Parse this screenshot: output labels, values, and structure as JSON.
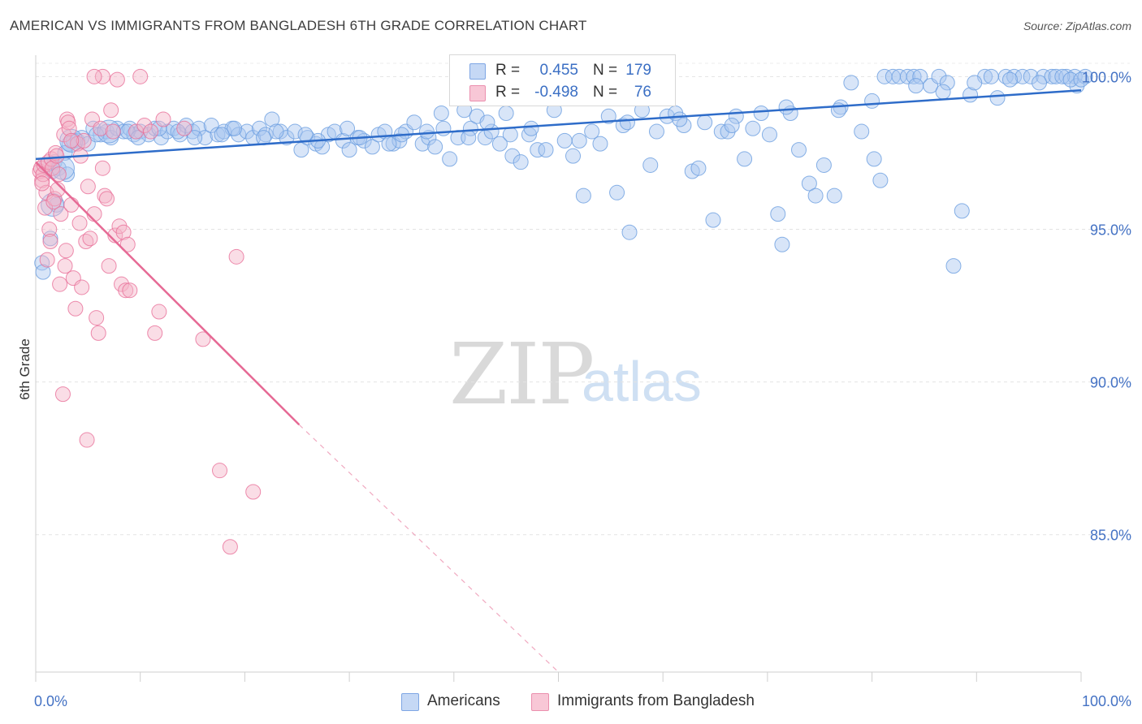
{
  "title": "AMERICAN VS IMMIGRANTS FROM BANGLADESH 6TH GRADE CORRELATION CHART",
  "source": "Source: ZipAtlas.com",
  "watermark": {
    "zip": "ZIP",
    "atlas": "atlas"
  },
  "stats": [
    {
      "r_label": "R =",
      "r_value": "0.455",
      "n_label": "N =",
      "n_value": "179",
      "color": "#a9c6f0"
    },
    {
      "r_label": "R =",
      "r_value": "-0.498",
      "n_label": "N =",
      "n_value": "76",
      "color": "#f5b3c8"
    }
  ],
  "legend": [
    {
      "label": "Americans",
      "color": "#a9c6f0"
    },
    {
      "label": "Immigrants from Bangladesh",
      "color": "#f5b3c8"
    }
  ],
  "chart_data": {
    "type": "scatter",
    "title": "AMERICAN VS IMMIGRANTS FROM BANGLADESH 6TH GRADE CORRELATION CHART",
    "xlabel": "",
    "ylabel": "6th Grade",
    "xlim": [
      0,
      100
    ],
    "ylim": [
      80.5,
      100.7
    ],
    "x_tick_labels": [
      {
        "value": 0,
        "label": "0.0%"
      },
      {
        "value": 100,
        "label": "100.0%"
      }
    ],
    "y_tick_labels": [
      {
        "value": 100,
        "label": "100.0%"
      },
      {
        "value": 95,
        "label": "95.0%"
      },
      {
        "value": 90,
        "label": "90.0%"
      },
      {
        "value": 85,
        "label": "85.0%"
      }
    ],
    "x_minor_ticks": [
      0,
      10,
      20,
      30,
      40,
      50,
      60,
      70,
      80,
      90,
      100
    ],
    "grid": "horizontal-dashed",
    "legend_position": "bottom-center",
    "series": [
      {
        "name": "Americans",
        "color": "#6a9ee0",
        "fill": "#a9c6f0",
        "trend": {
          "x": [
            0,
            100
          ],
          "y": [
            97.3,
            99.55
          ]
        },
        "points": [
          [
            0.6,
            93.9
          ],
          [
            0.7,
            93.6
          ],
          [
            1.4,
            94.7
          ],
          [
            1.6,
            96.9
          ],
          [
            1.8,
            97.2
          ],
          [
            2.0,
            95.8
          ],
          [
            2.2,
            97.0
          ],
          [
            3.0,
            96.8
          ],
          [
            3.2,
            97.8
          ],
          [
            4.0,
            97.9
          ],
          [
            4.4,
            98.0
          ],
          [
            5.0,
            97.8
          ],
          [
            5.5,
            98.3
          ],
          [
            6.2,
            98.1
          ],
          [
            6.8,
            98.2
          ],
          [
            7.2,
            98.0
          ],
          [
            7.8,
            98.3
          ],
          [
            8.4,
            98.2
          ],
          [
            9.0,
            98.3
          ],
          [
            9.4,
            98.1
          ],
          [
            10.0,
            98.2
          ],
          [
            10.8,
            98.1
          ],
          [
            11.4,
            98.3
          ],
          [
            12.0,
            98.0
          ],
          [
            12.6,
            98.2
          ],
          [
            13.2,
            98.3
          ],
          [
            13.8,
            98.1
          ],
          [
            14.4,
            98.4
          ],
          [
            15.0,
            98.2
          ],
          [
            15.6,
            98.3
          ],
          [
            16.2,
            98.0
          ],
          [
            16.8,
            98.4
          ],
          [
            17.4,
            98.1
          ],
          [
            18.0,
            98.2
          ],
          [
            18.8,
            98.3
          ],
          [
            19.4,
            98.1
          ],
          [
            20.2,
            98.2
          ],
          [
            20.8,
            98.0
          ],
          [
            21.4,
            98.3
          ],
          [
            22.0,
            98.1
          ],
          [
            22.6,
            98.6
          ],
          [
            23.4,
            98.2
          ],
          [
            24.0,
            98.0
          ],
          [
            24.8,
            98.2
          ],
          [
            25.4,
            97.6
          ],
          [
            26.0,
            98.0
          ],
          [
            26.8,
            97.8
          ],
          [
            27.4,
            97.7
          ],
          [
            28.0,
            98.1
          ],
          [
            28.6,
            98.2
          ],
          [
            29.4,
            97.9
          ],
          [
            30.0,
            97.6
          ],
          [
            30.8,
            98.0
          ],
          [
            31.4,
            97.9
          ],
          [
            32.2,
            97.7
          ],
          [
            32.8,
            98.1
          ],
          [
            33.4,
            98.2
          ],
          [
            34.2,
            97.8
          ],
          [
            34.8,
            97.9
          ],
          [
            35.4,
            98.2
          ],
          [
            36.2,
            98.5
          ],
          [
            37.0,
            97.8
          ],
          [
            37.6,
            98.0
          ],
          [
            38.2,
            97.7
          ],
          [
            38.8,
            98.8
          ],
          [
            39.6,
            97.3
          ],
          [
            40.4,
            98.0
          ],
          [
            41.0,
            98.9
          ],
          [
            41.6,
            98.3
          ],
          [
            42.2,
            98.7
          ],
          [
            43.0,
            98.0
          ],
          [
            43.6,
            98.2
          ],
          [
            44.4,
            97.8
          ],
          [
            45.0,
            98.8
          ],
          [
            45.6,
            97.4
          ],
          [
            46.4,
            97.2
          ],
          [
            47.2,
            98.1
          ],
          [
            48.0,
            97.6
          ],
          [
            48.8,
            97.6
          ],
          [
            49.6,
            98.9
          ],
          [
            50.6,
            97.9
          ],
          [
            51.4,
            97.4
          ],
          [
            52.4,
            96.1
          ],
          [
            53.2,
            98.2
          ],
          [
            54.0,
            97.8
          ],
          [
            54.8,
            98.7
          ],
          [
            55.6,
            96.2
          ],
          [
            56.2,
            98.4
          ],
          [
            56.8,
            94.9
          ],
          [
            58.0,
            98.9
          ],
          [
            58.8,
            97.1
          ],
          [
            59.4,
            98.2
          ],
          [
            60.4,
            98.7
          ],
          [
            61.2,
            98.8
          ],
          [
            62.0,
            98.4
          ],
          [
            62.8,
            96.9
          ],
          [
            63.4,
            97.0
          ],
          [
            64.0,
            98.5
          ],
          [
            64.8,
            95.3
          ],
          [
            65.6,
            98.2
          ],
          [
            66.2,
            98.2
          ],
          [
            67.0,
            98.7
          ],
          [
            67.8,
            97.3
          ],
          [
            68.6,
            98.3
          ],
          [
            69.4,
            98.8
          ],
          [
            70.2,
            98.1
          ],
          [
            71.0,
            95.5
          ],
          [
            71.4,
            94.5
          ],
          [
            72.2,
            98.8
          ],
          [
            73.0,
            97.6
          ],
          [
            74.0,
            96.5
          ],
          [
            74.6,
            96.1
          ],
          [
            75.4,
            97.1
          ],
          [
            76.4,
            96.1
          ],
          [
            77.0,
            99.0
          ],
          [
            78.0,
            99.8
          ],
          [
            79.0,
            98.2
          ],
          [
            80.2,
            97.3
          ],
          [
            80.8,
            96.6
          ],
          [
            81.2,
            100.0
          ],
          [
            82.0,
            100.0
          ],
          [
            82.6,
            100.0
          ],
          [
            83.4,
            100.0
          ],
          [
            84.0,
            100.0
          ],
          [
            84.6,
            100.0
          ],
          [
            85.6,
            99.7
          ],
          [
            86.4,
            100.0
          ],
          [
            87.2,
            99.8
          ],
          [
            87.8,
            93.8
          ],
          [
            88.6,
            95.6
          ],
          [
            89.4,
            99.4
          ],
          [
            90.8,
            100.0
          ],
          [
            91.4,
            100.0
          ],
          [
            92.0,
            99.3
          ],
          [
            92.8,
            100.0
          ],
          [
            93.6,
            100.0
          ],
          [
            94.4,
            100.0
          ],
          [
            95.2,
            100.0
          ],
          [
            96.4,
            100.0
          ],
          [
            97.2,
            100.0
          ],
          [
            97.6,
            100.0
          ],
          [
            98.6,
            100.0
          ],
          [
            99.4,
            100.0
          ],
          [
            99.6,
            99.7
          ],
          [
            100.4,
            100.0
          ],
          [
            1.0,
            97.1
          ],
          [
            2.8,
            97.5
          ],
          [
            5.8,
            98.1
          ],
          [
            8.8,
            98.2
          ],
          [
            11.8,
            98.3
          ],
          [
            15.2,
            98.0
          ],
          [
            19.0,
            98.3
          ],
          [
            23.0,
            98.2
          ],
          [
            27.0,
            97.9
          ],
          [
            31.0,
            98.0
          ],
          [
            35.0,
            98.1
          ],
          [
            39.0,
            98.3
          ],
          [
            43.2,
            98.5
          ],
          [
            47.4,
            98.3
          ],
          [
            52.0,
            97.9
          ],
          [
            56.6,
            98.5
          ],
          [
            61.6,
            98.6
          ],
          [
            66.6,
            98.4
          ],
          [
            71.8,
            99.0
          ],
          [
            76.8,
            98.9
          ],
          [
            80.0,
            99.2
          ],
          [
            84.2,
            99.7
          ],
          [
            86.8,
            99.5
          ],
          [
            89.8,
            99.8
          ],
          [
            93.2,
            99.9
          ],
          [
            96.0,
            99.8
          ],
          [
            98.2,
            100.0
          ],
          [
            99.0,
            99.9
          ],
          [
            100.0,
            99.9
          ],
          [
            3.6,
            97.9
          ],
          [
            9.8,
            98.0
          ],
          [
            13.6,
            98.2
          ],
          [
            17.8,
            98.1
          ],
          [
            21.8,
            98.0
          ],
          [
            25.8,
            98.1
          ],
          [
            29.8,
            98.3
          ],
          [
            33.8,
            97.8
          ],
          [
            37.4,
            98.2
          ],
          [
            41.4,
            98.0
          ],
          [
            45.4,
            98.1
          ]
        ],
        "large_points": [
          [
            2.6,
            97.0
          ],
          [
            1.6,
            95.8
          ],
          [
            3.4,
            97.9
          ],
          [
            7.0,
            98.2
          ]
        ]
      },
      {
        "name": "Immigrants from Bangladesh",
        "color": "#e86f98",
        "fill": "#f5b3c8",
        "trend": {
          "x": [
            0,
            25.2
          ],
          "y": [
            97.2,
            88.6
          ]
        },
        "trend_extension": {
          "x": [
            25.2,
            50
          ],
          "y": [
            88.6,
            80.5
          ]
        },
        "points": [
          [
            0.4,
            96.9
          ],
          [
            0.5,
            97.0
          ],
          [
            0.6,
            96.6
          ],
          [
            0.7,
            96.8
          ],
          [
            0.8,
            97.1
          ],
          [
            0.9,
            95.7
          ],
          [
            1.0,
            96.2
          ],
          [
            1.2,
            97.2
          ],
          [
            1.3,
            95.0
          ],
          [
            1.4,
            94.6
          ],
          [
            1.5,
            97.3
          ],
          [
            1.6,
            97.0
          ],
          [
            1.8,
            96.0
          ],
          [
            1.9,
            97.5
          ],
          [
            2.0,
            97.4
          ],
          [
            2.2,
            96.8
          ],
          [
            2.3,
            93.2
          ],
          [
            2.4,
            95.5
          ],
          [
            2.6,
            89.6
          ],
          [
            2.7,
            98.1
          ],
          [
            2.8,
            93.8
          ],
          [
            2.9,
            94.3
          ],
          [
            3.0,
            98.6
          ],
          [
            3.1,
            98.5
          ],
          [
            3.2,
            98.3
          ],
          [
            3.4,
            95.8
          ],
          [
            3.6,
            93.4
          ],
          [
            3.8,
            92.4
          ],
          [
            4.0,
            97.8
          ],
          [
            4.2,
            95.2
          ],
          [
            4.4,
            93.1
          ],
          [
            4.6,
            97.9
          ],
          [
            4.8,
            94.6
          ],
          [
            4.9,
            88.1
          ],
          [
            5.0,
            96.4
          ],
          [
            5.2,
            94.7
          ],
          [
            5.4,
            98.6
          ],
          [
            5.6,
            95.5
          ],
          [
            5.8,
            92.1
          ],
          [
            6.0,
            91.6
          ],
          [
            6.2,
            98.3
          ],
          [
            6.4,
            100.0
          ],
          [
            6.6,
            96.1
          ],
          [
            6.8,
            96.0
          ],
          [
            7.0,
            93.8
          ],
          [
            7.2,
            98.9
          ],
          [
            7.4,
            98.2
          ],
          [
            7.6,
            94.8
          ],
          [
            7.8,
            99.9
          ],
          [
            8.0,
            95.1
          ],
          [
            8.2,
            93.2
          ],
          [
            8.4,
            94.9
          ],
          [
            8.6,
            93.0
          ],
          [
            8.8,
            94.5
          ],
          [
            9.0,
            93.0
          ],
          [
            9.6,
            98.2
          ],
          [
            10.0,
            100.0
          ],
          [
            10.4,
            98.4
          ],
          [
            11.0,
            98.2
          ],
          [
            11.4,
            91.6
          ],
          [
            11.8,
            92.3
          ],
          [
            12.2,
            98.6
          ],
          [
            14.2,
            98.3
          ],
          [
            16.0,
            91.4
          ],
          [
            17.6,
            87.1
          ],
          [
            18.6,
            84.6
          ],
          [
            19.2,
            94.1
          ],
          [
            20.8,
            86.4
          ],
          [
            5.6,
            100.0
          ],
          [
            3.4,
            97.9
          ],
          [
            0.6,
            96.5
          ],
          [
            1.1,
            94.0
          ],
          [
            2.1,
            96.3
          ],
          [
            4.3,
            97.4
          ],
          [
            6.4,
            97.0
          ],
          [
            1.7,
            95.9
          ]
        ]
      }
    ]
  }
}
